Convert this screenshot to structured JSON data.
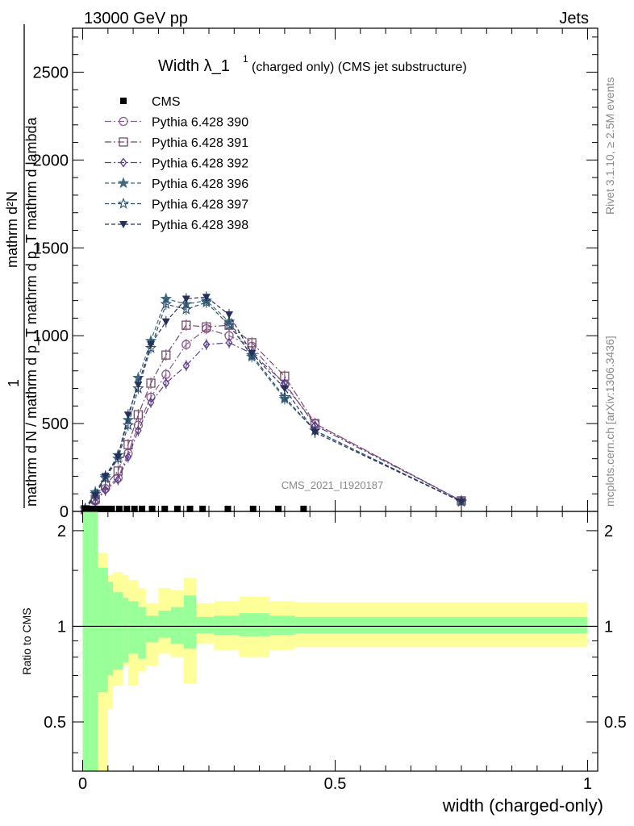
{
  "header": {
    "energy": "13000 GeV pp",
    "category": "Jets"
  },
  "side_labels": {
    "rivet": "Rivet 3.1.10, ≥ 2.5M events",
    "mcplots": "mcplots.cern.ch [arXiv:1306.3436]"
  },
  "watermark": "CMS_2021_I1920187",
  "chart_data": [
    {
      "type": "line",
      "title": "Width λ_1¹ (charged only) (CMS jet substructure)",
      "title_main": "Width λ_1",
      "title_sup": "1",
      "title_rest": "(charged only) (CMS jet substructure)",
      "ylabel_numerator": "mathrm d²N",
      "ylabel_denominator": "mathrm d N / mathrm d p_T mathrm d p_T mathrm d lambda",
      "ylabel_prefix": "1",
      "ylim": [
        0,
        2750
      ],
      "yticks": [
        0,
        500,
        1000,
        1500,
        2000,
        2500
      ],
      "ytick_labels": [
        "0",
        "500",
        "1000",
        "1500",
        "2000",
        "2500"
      ],
      "xlim": [
        -0.02,
        1.02
      ],
      "legend_position": "top-left",
      "data": {
        "name": "CMS",
        "x": [
          0.005,
          0.015,
          0.025,
          0.035,
          0.045,
          0.0575,
          0.0725,
          0.0875,
          0.1025,
          0.1175,
          0.1375,
          0.1625,
          0.1875,
          0.2125,
          0.2375,
          0.2875,
          0.3375,
          0.3875,
          0.4375
        ],
        "y": [
          5,
          5,
          5,
          5,
          5,
          5,
          5,
          5,
          5,
          5,
          5,
          5,
          5,
          5,
          5,
          5,
          5,
          5,
          5
        ]
      },
      "series": [
        {
          "name": "Pythia 6.428 390",
          "color": "#8a5b8f",
          "marker": "circle-open",
          "dash": "8,3,2,3",
          "x": [
            0.005,
            0.025,
            0.045,
            0.07,
            0.09,
            0.11,
            0.135,
            0.165,
            0.205,
            0.245,
            0.29,
            0.335,
            0.4,
            0.46,
            0.75
          ],
          "y": [
            8,
            60,
            130,
            190,
            330,
            490,
            650,
            780,
            950,
            1040,
            1000,
            940,
            720,
            500,
            60
          ]
        },
        {
          "name": "Pythia 6.428 391",
          "color": "#7a4a6a",
          "marker": "square-open",
          "dash": "8,3,2,3",
          "x": [
            0.005,
            0.025,
            0.045,
            0.07,
            0.09,
            0.11,
            0.135,
            0.165,
            0.205,
            0.245,
            0.29,
            0.335,
            0.4,
            0.46,
            0.75
          ],
          "y": [
            10,
            70,
            150,
            230,
            380,
            550,
            730,
            890,
            1060,
            1050,
            1060,
            960,
            770,
            500,
            60
          ]
        },
        {
          "name": "Pythia 6.428 392",
          "color": "#5d3f8a",
          "marker": "diamond-open",
          "dash": "8,3,2,3",
          "x": [
            0.005,
            0.025,
            0.045,
            0.07,
            0.09,
            0.11,
            0.135,
            0.165,
            0.205,
            0.245,
            0.29,
            0.335,
            0.4,
            0.46,
            0.75
          ],
          "y": [
            8,
            55,
            120,
            180,
            310,
            460,
            620,
            730,
            830,
            950,
            960,
            900,
            730,
            490,
            60
          ]
        },
        {
          "name": "Pythia 6.428 396",
          "color": "#3f6a80",
          "marker": "star-filled",
          "dash": "5,3",
          "x": [
            0.005,
            0.025,
            0.045,
            0.07,
            0.09,
            0.11,
            0.135,
            0.165,
            0.205,
            0.245,
            0.29,
            0.335,
            0.4,
            0.46,
            0.75
          ],
          "y": [
            15,
            110,
            200,
            320,
            520,
            760,
            970,
            1210,
            1180,
            1200,
            1080,
            880,
            640,
            460,
            55
          ]
        },
        {
          "name": "Pythia 6.428 397",
          "color": "#2f5070",
          "marker": "star-open",
          "dash": "5,3",
          "x": [
            0.005,
            0.025,
            0.045,
            0.07,
            0.09,
            0.11,
            0.135,
            0.165,
            0.205,
            0.245,
            0.29,
            0.335,
            0.4,
            0.46,
            0.75
          ],
          "y": [
            15,
            100,
            190,
            300,
            490,
            700,
            930,
            1180,
            1150,
            1190,
            1060,
            890,
            650,
            460,
            55
          ]
        },
        {
          "name": "Pythia 6.428 398",
          "color": "#26305a",
          "marker": "triangle-down-filled",
          "dash": "5,3",
          "x": [
            0.005,
            0.025,
            0.045,
            0.07,
            0.09,
            0.11,
            0.135,
            0.165,
            0.205,
            0.245,
            0.29,
            0.335,
            0.4,
            0.46,
            0.75
          ],
          "y": [
            12,
            90,
            200,
            310,
            550,
            720,
            950,
            1080,
            1210,
            1220,
            1120,
            900,
            700,
            450,
            55
          ]
        }
      ]
    },
    {
      "type": "area",
      "ylabel": "Ratio to CMS",
      "xlabel": "width (charged-only)",
      "ylim": [
        0.35,
        2.3
      ],
      "yticks": [
        0.5,
        1,
        2
      ],
      "ytick_labels": [
        "0.5",
        "1",
        "2"
      ],
      "xlim": [
        -0.02,
        1.02
      ],
      "xticks": [
        0,
        0.5,
        1
      ],
      "xtick_labels": [
        "0",
        "0.5",
        "1"
      ],
      "bin_edges": [
        0,
        0.02,
        0.03,
        0.05,
        0.06,
        0.08,
        0.09,
        0.11,
        0.125,
        0.15,
        0.175,
        0.2,
        0.225,
        0.26,
        0.31,
        0.37,
        0.42,
        1.0
      ],
      "stat_band": {
        "color": "#99ff99",
        "lo": [
          0.3,
          0.3,
          0.62,
          0.7,
          0.73,
          0.77,
          0.82,
          0.79,
          0.89,
          0.92,
          0.88,
          0.85,
          0.95,
          0.94,
          0.93,
          0.94,
          0.95
        ],
        "hi": [
          2.3,
          2.3,
          1.53,
          1.38,
          1.28,
          1.23,
          1.2,
          1.15,
          1.08,
          1.12,
          1.15,
          1.25,
          1.07,
          1.08,
          1.1,
          1.08,
          1.07
        ]
      },
      "total_band": {
        "color": "#ffff99",
        "lo": [
          0.3,
          0.3,
          0.3,
          0.55,
          0.65,
          0.75,
          0.65,
          0.72,
          0.75,
          0.82,
          0.8,
          0.66,
          0.88,
          0.84,
          0.8,
          0.84,
          0.86
        ],
        "hi": [
          2.3,
          2.3,
          1.7,
          1.45,
          1.48,
          1.45,
          1.4,
          1.32,
          1.18,
          1.32,
          1.3,
          1.42,
          1.18,
          1.2,
          1.24,
          1.2,
          1.19
        ]
      }
    }
  ]
}
